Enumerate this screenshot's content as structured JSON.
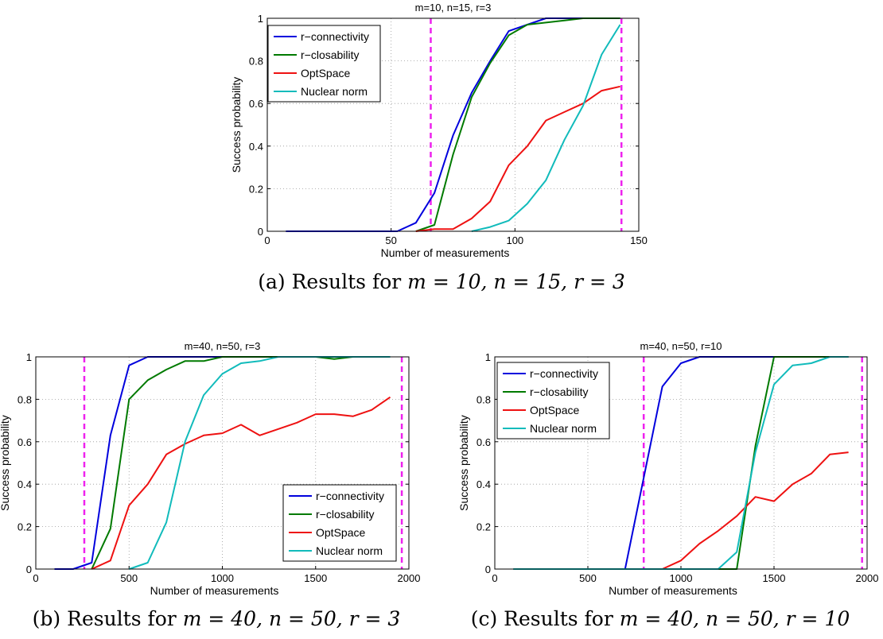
{
  "chart_data": [
    {
      "type": "line",
      "title": "m=10, n=15, r=3",
      "xlabel": "Number of measurements",
      "ylabel": "Success probability",
      "xlim": [
        0,
        150
      ],
      "ylim": [
        0,
        1
      ],
      "xticks": [
        "0",
        "50",
        "100",
        "150"
      ],
      "xtick_values": [
        0,
        50,
        100,
        150
      ],
      "yticks": [
        "0",
        "0.2",
        "0.4",
        "0.6",
        "0.8",
        "1"
      ],
      "ytick_values": [
        0,
        0.2,
        0.4,
        0.6,
        0.8,
        1
      ],
      "grid": true,
      "legend_position": "top-left",
      "caption_prefix": "(a) Results for",
      "caption_math": "m = 10, n = 15, r = 3",
      "vlines": [
        66,
        143
      ],
      "x": [
        7.5,
        15,
        22.5,
        30,
        37.5,
        45,
        52.5,
        60,
        67.5,
        75,
        82.5,
        90,
        97.5,
        105,
        112.5,
        120,
        127.5,
        135,
        142.5
      ],
      "series": [
        {
          "name": "r−connectivity",
          "color": "#0000dd",
          "values": [
            0,
            0,
            0,
            0,
            0,
            0,
            0,
            0.04,
            0.18,
            0.45,
            0.65,
            0.8,
            0.94,
            0.97,
            1,
            1,
            1,
            1,
            1
          ]
        },
        {
          "name": "r−closability",
          "color": "#007a00",
          "values": [
            null,
            null,
            null,
            null,
            null,
            null,
            null,
            0,
            0.03,
            0.36,
            0.63,
            0.79,
            0.92,
            0.97,
            0.98,
            0.99,
            1,
            1,
            1
          ]
        },
        {
          "name": "OptSpace",
          "color": "#ee1111",
          "values": [
            null,
            null,
            null,
            null,
            null,
            null,
            null,
            0,
            0.01,
            0.01,
            0.06,
            0.14,
            0.31,
            0.4,
            0.52,
            0.56,
            0.6,
            0.66,
            0.68
          ]
        },
        {
          "name": "Nuclear norm",
          "color": "#11bbbb",
          "values": [
            null,
            null,
            null,
            null,
            null,
            null,
            null,
            null,
            null,
            null,
            0,
            0.02,
            0.05,
            0.13,
            0.24,
            0.43,
            0.59,
            0.83,
            0.97
          ]
        }
      ]
    },
    {
      "type": "line",
      "title": "m=40, n=50, r=3",
      "xlabel": "Number of measurements",
      "ylabel": "Success probability",
      "xlim": [
        0,
        2000
      ],
      "ylim": [
        0,
        1
      ],
      "xticks": [
        "0",
        "500",
        "1000",
        "1500",
        "2000"
      ],
      "xtick_values": [
        0,
        500,
        1000,
        1500,
        2000
      ],
      "yticks": [
        "0",
        "0.2",
        "0.4",
        "0.6",
        "0.8",
        "1"
      ],
      "ytick_values": [
        0,
        0.2,
        0.4,
        0.6,
        0.8,
        1
      ],
      "grid": true,
      "legend_position": "bottom-right",
      "caption_prefix": "(b) Results for",
      "caption_math": "m = 40, n = 50, r = 3",
      "vlines": [
        260,
        1962
      ],
      "x": [
        100,
        200,
        300,
        400,
        500,
        600,
        700,
        800,
        900,
        1000,
        1100,
        1200,
        1300,
        1400,
        1500,
        1600,
        1700,
        1800,
        1900
      ],
      "series": [
        {
          "name": "r−connectivity",
          "color": "#0000dd",
          "values": [
            0,
            0,
            0.03,
            0.63,
            0.96,
            1,
            1,
            1,
            1,
            1,
            1,
            1,
            1,
            1,
            1,
            1,
            1,
            1,
            1
          ]
        },
        {
          "name": "r−closability",
          "color": "#007a00",
          "values": [
            null,
            null,
            0,
            0.19,
            0.8,
            0.89,
            0.94,
            0.98,
            0.98,
            1,
            1,
            1,
            1,
            1,
            1,
            0.99,
            1,
            1,
            1
          ]
        },
        {
          "name": "OptSpace",
          "color": "#ee1111",
          "values": [
            null,
            null,
            0,
            0.04,
            0.3,
            0.4,
            0.54,
            0.59,
            0.63,
            0.64,
            0.68,
            0.63,
            0.66,
            0.69,
            0.73,
            0.73,
            0.72,
            0.75,
            0.81
          ]
        },
        {
          "name": "Nuclear norm",
          "color": "#11bbbb",
          "values": [
            null,
            null,
            null,
            null,
            0,
            0.03,
            0.22,
            0.6,
            0.82,
            0.92,
            0.97,
            0.98,
            1,
            1,
            1,
            1,
            1,
            1,
            1
          ]
        }
      ]
    },
    {
      "type": "line",
      "title": "m=40, n=50, r=10",
      "xlabel": "Number of measurements",
      "ylabel": "Success probability",
      "xlim": [
        0,
        2000
      ],
      "ylim": [
        0,
        1
      ],
      "xticks": [
        "0",
        "500",
        "1000",
        "1500",
        "2000"
      ],
      "xtick_values": [
        0,
        500,
        1000,
        1500,
        2000
      ],
      "yticks": [
        "0",
        "0.2",
        "0.4",
        "0.6",
        "0.8",
        "1"
      ],
      "ytick_values": [
        0,
        0.2,
        0.4,
        0.6,
        0.8,
        1
      ],
      "grid": true,
      "legend_position": "top-left",
      "caption_prefix": "(c) Results for",
      "caption_math": "m = 40, n = 50, r = 10",
      "vlines": [
        800,
        1973
      ],
      "x": [
        100,
        200,
        300,
        400,
        500,
        600,
        700,
        800,
        900,
        1000,
        1100,
        1200,
        1300,
        1400,
        1500,
        1600,
        1700,
        1800,
        1900
      ],
      "series": [
        {
          "name": "r−connectivity",
          "color": "#0000dd",
          "values": [
            0,
            0,
            0,
            0,
            0,
            0,
            0,
            0.43,
            0.86,
            0.97,
            1,
            1,
            1,
            1,
            1,
            1,
            1,
            1,
            1
          ]
        },
        {
          "name": "r−closability",
          "color": "#007a00",
          "values": [
            0,
            0,
            0,
            0,
            0,
            0,
            0,
            0,
            0,
            0,
            0,
            0,
            0,
            0.58,
            1,
            1,
            1,
            1,
            1
          ]
        },
        {
          "name": "OptSpace",
          "color": "#ee1111",
          "values": [
            0,
            0,
            0,
            0,
            0,
            0,
            0,
            0,
            0,
            0.04,
            0.12,
            0.18,
            0.25,
            0.34,
            0.32,
            0.4,
            0.45,
            0.54,
            0.55
          ]
        },
        {
          "name": "Nuclear norm",
          "color": "#11bbbb",
          "values": [
            0,
            0,
            0,
            0,
            0,
            0,
            0,
            0,
            0,
            0,
            0,
            0,
            0.08,
            0.55,
            0.87,
            0.96,
            0.97,
            1,
            1
          ]
        }
      ]
    }
  ]
}
